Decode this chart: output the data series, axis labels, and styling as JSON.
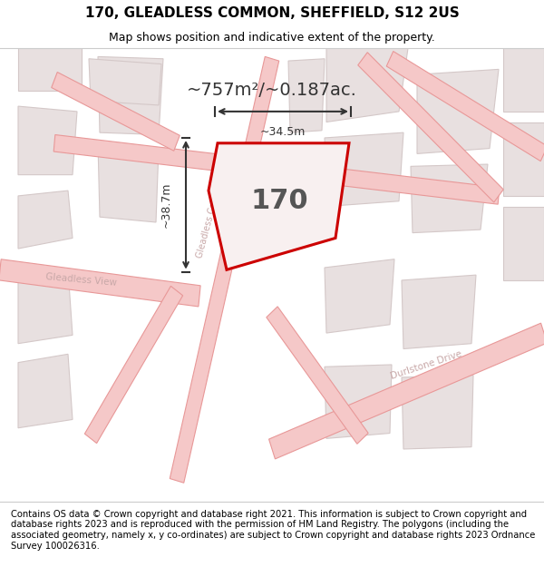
{
  "title": "170, GLEADLESS COMMON, SHEFFIELD, S12 2US",
  "subtitle": "Map shows position and indicative extent of the property.",
  "footer": "Contains OS data © Crown copyright and database right 2021. This information is subject to Crown copyright and database rights 2023 and is reproduced with the permission of HM Land Registry. The polygons (including the associated geometry, namely x, y co-ordinates) are subject to Crown copyright and database rights 2023 Ordnance Survey 100026316.",
  "area_label": "~757m²/~0.187ac.",
  "property_number": "170",
  "width_label": "~34.5m",
  "height_label": "~38.7m",
  "bg_color": "#f0eeee",
  "map_bg": "#f5f0f0",
  "road_color": "#f5c8c8",
  "road_stroke": "#e89898",
  "property_outline_color": "#cc0000",
  "property_fill": "#f5f0f0",
  "block_fill": "#e8e0e0",
  "block_stroke": "#d4c8c8",
  "title_fontsize": 11,
  "subtitle_fontsize": 9,
  "footer_fontsize": 7.2,
  "street_label_color": "#c8a8a8",
  "dim_color": "#333333"
}
